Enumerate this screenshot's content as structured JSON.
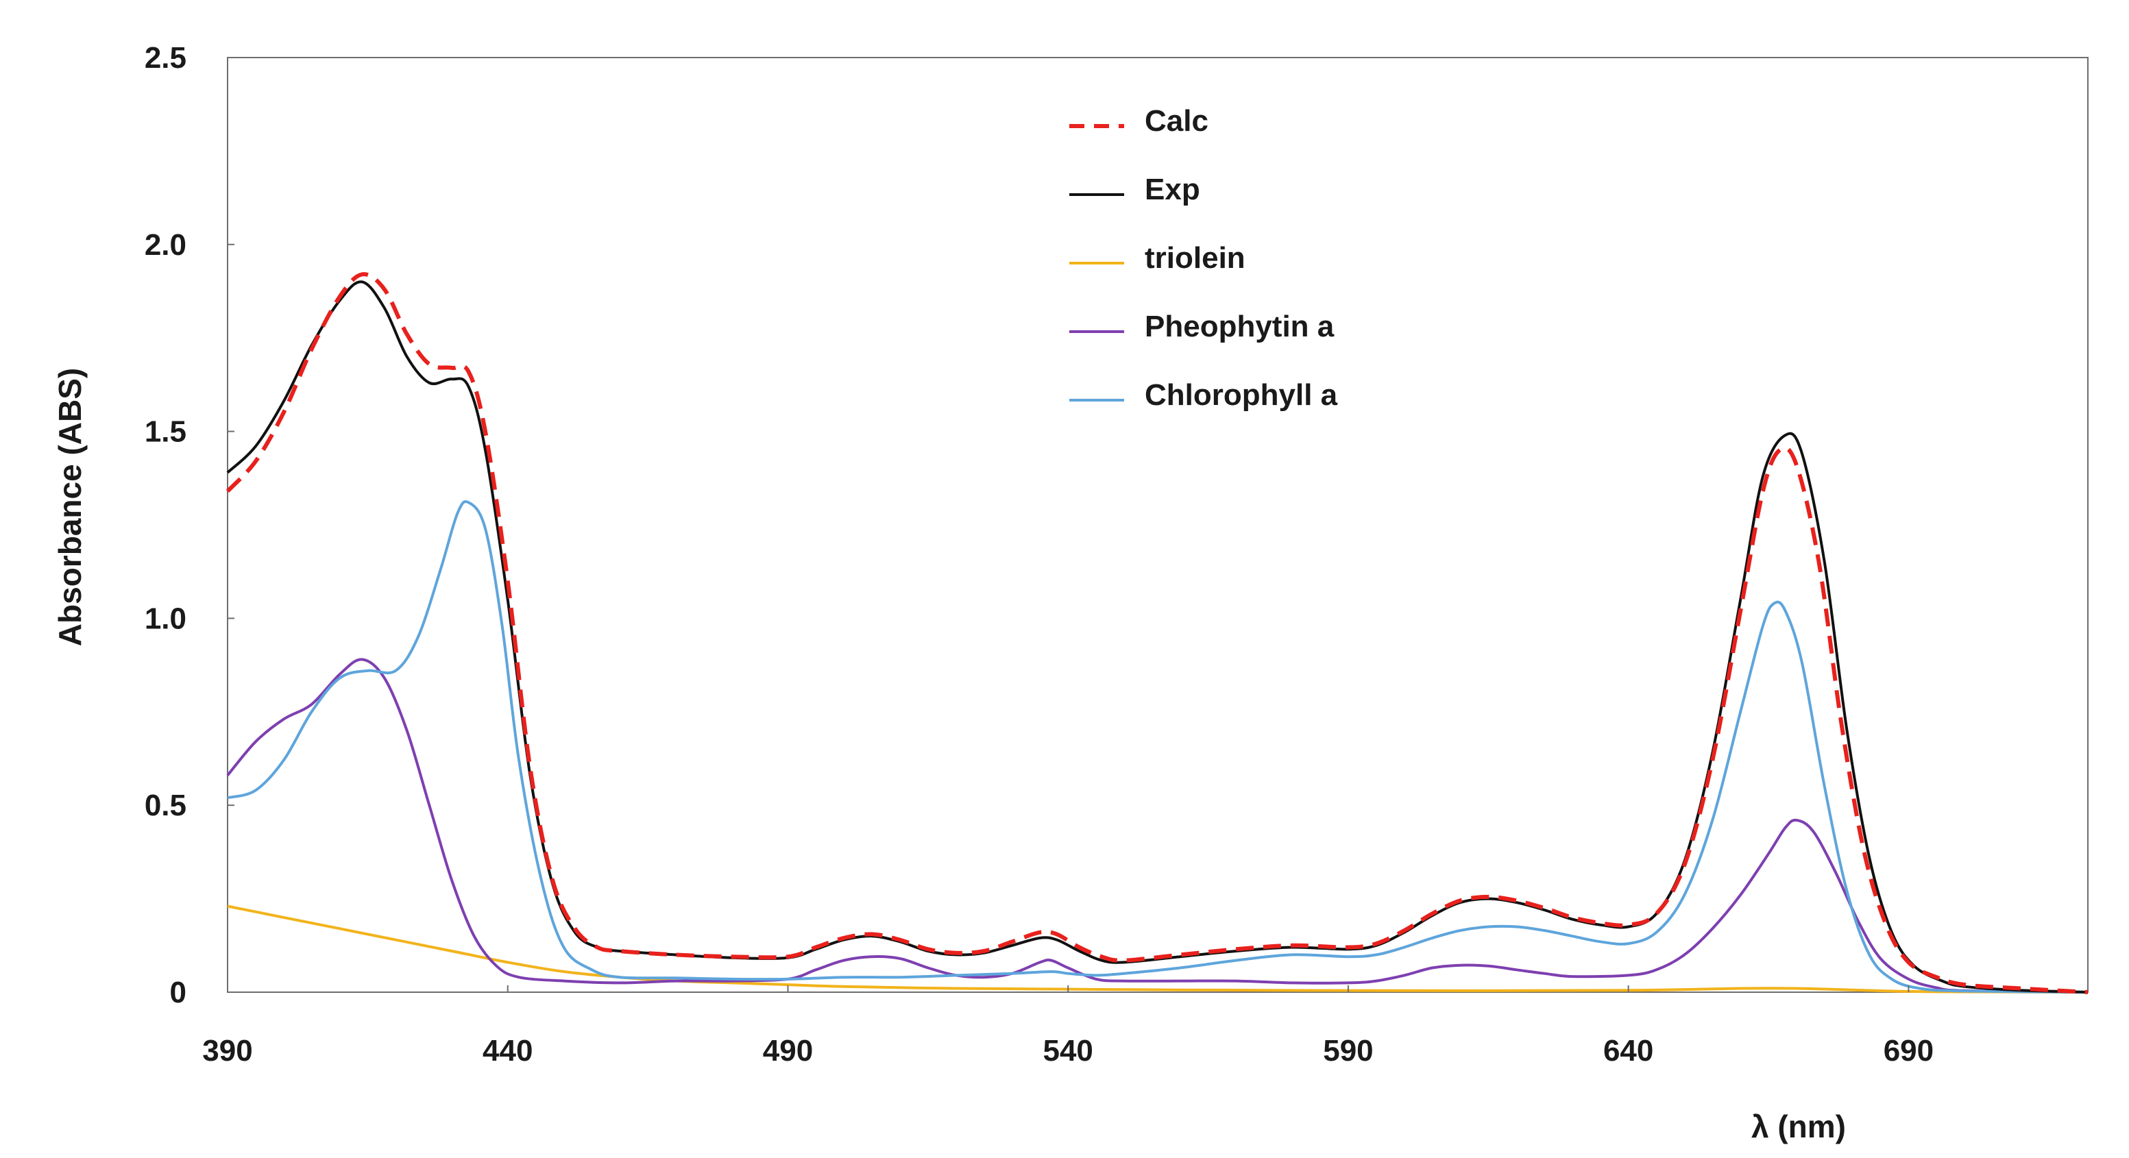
{
  "chart_data": {
    "type": "line",
    "title": "",
    "xlabel": "λ (nm)",
    "ylabel": "Absorbance (ABS)",
    "xlim": [
      390,
      722
    ],
    "ylim": [
      0,
      2.5
    ],
    "x_ticks": [
      390,
      440,
      490,
      540,
      590,
      640,
      690
    ],
    "x_tick_labels": [
      "390",
      "440",
      "490",
      "540",
      "590",
      "640",
      "690"
    ],
    "y_ticks": [
      0,
      0.5,
      1.0,
      1.5,
      2.0,
      2.5
    ],
    "y_tick_labels": [
      "0",
      "0.5",
      "1.0",
      "1.5",
      "2.0",
      "2.5"
    ],
    "grid": false,
    "legend_position": "top-center",
    "series": [
      {
        "name": "Calc",
        "color": "#e8211d",
        "dash": "dashed",
        "points": [
          [
            390,
            1.34
          ],
          [
            395,
            1.42
          ],
          [
            400,
            1.55
          ],
          [
            405,
            1.72
          ],
          [
            410,
            1.86
          ],
          [
            414,
            1.92
          ],
          [
            418,
            1.88
          ],
          [
            422,
            1.76
          ],
          [
            426,
            1.68
          ],
          [
            430,
            1.67
          ],
          [
            433,
            1.66
          ],
          [
            436,
            1.5
          ],
          [
            440,
            1.1
          ],
          [
            444,
            0.6
          ],
          [
            448,
            0.3
          ],
          [
            452,
            0.17
          ],
          [
            456,
            0.12
          ],
          [
            460,
            0.11
          ],
          [
            470,
            0.1
          ],
          [
            480,
            0.095
          ],
          [
            490,
            0.095
          ],
          [
            495,
            0.12
          ],
          [
            500,
            0.145
          ],
          [
            505,
            0.155
          ],
          [
            510,
            0.14
          ],
          [
            515,
            0.115
          ],
          [
            520,
            0.105
          ],
          [
            525,
            0.11
          ],
          [
            530,
            0.135
          ],
          [
            535,
            0.16
          ],
          [
            538,
            0.155
          ],
          [
            542,
            0.12
          ],
          [
            546,
            0.095
          ],
          [
            550,
            0.085
          ],
          [
            560,
            0.1
          ],
          [
            570,
            0.115
          ],
          [
            580,
            0.125
          ],
          [
            590,
            0.12
          ],
          [
            595,
            0.13
          ],
          [
            600,
            0.165
          ],
          [
            605,
            0.21
          ],
          [
            610,
            0.245
          ],
          [
            615,
            0.255
          ],
          [
            620,
            0.245
          ],
          [
            625,
            0.225
          ],
          [
            630,
            0.2
          ],
          [
            635,
            0.185
          ],
          [
            640,
            0.18
          ],
          [
            645,
            0.21
          ],
          [
            650,
            0.34
          ],
          [
            655,
            0.62
          ],
          [
            660,
            1.02
          ],
          [
            664,
            1.34
          ],
          [
            667,
            1.45
          ],
          [
            670,
            1.41
          ],
          [
            674,
            1.15
          ],
          [
            678,
            0.72
          ],
          [
            682,
            0.38
          ],
          [
            686,
            0.18
          ],
          [
            690,
            0.08
          ],
          [
            695,
            0.04
          ],
          [
            700,
            0.02
          ],
          [
            710,
            0.01
          ],
          [
            722,
            0
          ]
        ]
      },
      {
        "name": "Exp",
        "color": "#111111",
        "dash": "solid",
        "points": [
          [
            390,
            1.39
          ],
          [
            395,
            1.46
          ],
          [
            400,
            1.58
          ],
          [
            405,
            1.73
          ],
          [
            410,
            1.85
          ],
          [
            414,
            1.9
          ],
          [
            418,
            1.83
          ],
          [
            422,
            1.7
          ],
          [
            426,
            1.63
          ],
          [
            430,
            1.64
          ],
          [
            433,
            1.62
          ],
          [
            436,
            1.45
          ],
          [
            440,
            1.05
          ],
          [
            444,
            0.58
          ],
          [
            448,
            0.29
          ],
          [
            452,
            0.16
          ],
          [
            456,
            0.12
          ],
          [
            460,
            0.11
          ],
          [
            470,
            0.1
          ],
          [
            480,
            0.092
          ],
          [
            490,
            0.092
          ],
          [
            495,
            0.115
          ],
          [
            500,
            0.14
          ],
          [
            505,
            0.15
          ],
          [
            510,
            0.135
          ],
          [
            515,
            0.11
          ],
          [
            520,
            0.1
          ],
          [
            525,
            0.105
          ],
          [
            530,
            0.125
          ],
          [
            535,
            0.145
          ],
          [
            538,
            0.14
          ],
          [
            542,
            0.11
          ],
          [
            546,
            0.085
          ],
          [
            550,
            0.08
          ],
          [
            560,
            0.095
          ],
          [
            570,
            0.11
          ],
          [
            580,
            0.12
          ],
          [
            590,
            0.115
          ],
          [
            595,
            0.125
          ],
          [
            600,
            0.16
          ],
          [
            605,
            0.205
          ],
          [
            610,
            0.24
          ],
          [
            615,
            0.25
          ],
          [
            620,
            0.24
          ],
          [
            625,
            0.22
          ],
          [
            630,
            0.195
          ],
          [
            635,
            0.18
          ],
          [
            640,
            0.175
          ],
          [
            645,
            0.21
          ],
          [
            650,
            0.35
          ],
          [
            655,
            0.64
          ],
          [
            660,
            1.05
          ],
          [
            664,
            1.38
          ],
          [
            668,
            1.49
          ],
          [
            671,
            1.44
          ],
          [
            675,
            1.15
          ],
          [
            679,
            0.7
          ],
          [
            683,
            0.36
          ],
          [
            687,
            0.16
          ],
          [
            691,
            0.07
          ],
          [
            696,
            0.03
          ],
          [
            700,
            0.015
          ],
          [
            710,
            0.005
          ],
          [
            722,
            0
          ]
        ]
      },
      {
        "name": "triolein",
        "color": "#f2b31b",
        "dash": "solid",
        "points": [
          [
            390,
            0.23
          ],
          [
            400,
            0.2
          ],
          [
            410,
            0.17
          ],
          [
            420,
            0.14
          ],
          [
            430,
            0.11
          ],
          [
            440,
            0.08
          ],
          [
            450,
            0.055
          ],
          [
            460,
            0.04
          ],
          [
            470,
            0.03
          ],
          [
            480,
            0.025
          ],
          [
            490,
            0.02
          ],
          [
            500,
            0.015
          ],
          [
            520,
            0.01
          ],
          [
            540,
            0.008
          ],
          [
            560,
            0.006
          ],
          [
            600,
            0.004
          ],
          [
            640,
            0.005
          ],
          [
            660,
            0.01
          ],
          [
            670,
            0.01
          ],
          [
            680,
            0.006
          ],
          [
            690,
            0.002
          ],
          [
            700,
            0.001
          ],
          [
            722,
            0
          ]
        ]
      },
      {
        "name": "Pheophytin a",
        "color": "#7e3fb0",
        "dash": "solid",
        "points": [
          [
            390,
            0.58
          ],
          [
            395,
            0.67
          ],
          [
            400,
            0.73
          ],
          [
            405,
            0.77
          ],
          [
            410,
            0.85
          ],
          [
            414,
            0.89
          ],
          [
            418,
            0.84
          ],
          [
            422,
            0.7
          ],
          [
            426,
            0.5
          ],
          [
            430,
            0.3
          ],
          [
            434,
            0.15
          ],
          [
            438,
            0.07
          ],
          [
            442,
            0.04
          ],
          [
            450,
            0.03
          ],
          [
            460,
            0.025
          ],
          [
            470,
            0.03
          ],
          [
            480,
            0.03
          ],
          [
            490,
            0.035
          ],
          [
            495,
            0.06
          ],
          [
            500,
            0.085
          ],
          [
            505,
            0.095
          ],
          [
            510,
            0.09
          ],
          [
            515,
            0.065
          ],
          [
            520,
            0.045
          ],
          [
            525,
            0.04
          ],
          [
            530,
            0.05
          ],
          [
            535,
            0.08
          ],
          [
            537,
            0.085
          ],
          [
            540,
            0.065
          ],
          [
            545,
            0.035
          ],
          [
            550,
            0.03
          ],
          [
            560,
            0.03
          ],
          [
            570,
            0.03
          ],
          [
            580,
            0.025
          ],
          [
            590,
            0.025
          ],
          [
            595,
            0.03
          ],
          [
            600,
            0.045
          ],
          [
            605,
            0.065
          ],
          [
            610,
            0.072
          ],
          [
            615,
            0.07
          ],
          [
            620,
            0.06
          ],
          [
            625,
            0.05
          ],
          [
            630,
            0.042
          ],
          [
            640,
            0.045
          ],
          [
            645,
            0.06
          ],
          [
            650,
            0.1
          ],
          [
            655,
            0.17
          ],
          [
            660,
            0.26
          ],
          [
            665,
            0.37
          ],
          [
            668,
            0.44
          ],
          [
            670,
            0.46
          ],
          [
            673,
            0.43
          ],
          [
            677,
            0.32
          ],
          [
            681,
            0.19
          ],
          [
            685,
            0.09
          ],
          [
            690,
            0.035
          ],
          [
            695,
            0.012
          ],
          [
            700,
            0.004
          ],
          [
            722,
            0
          ]
        ]
      },
      {
        "name": "Chlorophyll a",
        "color": "#5ea5dc",
        "dash": "solid",
        "points": [
          [
            390,
            0.52
          ],
          [
            395,
            0.54
          ],
          [
            400,
            0.62
          ],
          [
            405,
            0.75
          ],
          [
            410,
            0.84
          ],
          [
            415,
            0.86
          ],
          [
            420,
            0.86
          ],
          [
            424,
            0.95
          ],
          [
            428,
            1.13
          ],
          [
            431,
            1.28
          ],
          [
            433,
            1.31
          ],
          [
            436,
            1.24
          ],
          [
            439,
            0.98
          ],
          [
            442,
            0.62
          ],
          [
            446,
            0.3
          ],
          [
            450,
            0.12
          ],
          [
            455,
            0.06
          ],
          [
            460,
            0.04
          ],
          [
            470,
            0.038
          ],
          [
            480,
            0.035
          ],
          [
            490,
            0.035
          ],
          [
            500,
            0.04
          ],
          [
            510,
            0.04
          ],
          [
            520,
            0.045
          ],
          [
            530,
            0.05
          ],
          [
            537,
            0.055
          ],
          [
            540,
            0.05
          ],
          [
            545,
            0.045
          ],
          [
            550,
            0.05
          ],
          [
            560,
            0.065
          ],
          [
            570,
            0.085
          ],
          [
            580,
            0.1
          ],
          [
            590,
            0.095
          ],
          [
            595,
            0.1
          ],
          [
            600,
            0.12
          ],
          [
            605,
            0.145
          ],
          [
            610,
            0.165
          ],
          [
            615,
            0.175
          ],
          [
            620,
            0.175
          ],
          [
            625,
            0.165
          ],
          [
            630,
            0.15
          ],
          [
            635,
            0.135
          ],
          [
            640,
            0.13
          ],
          [
            645,
            0.16
          ],
          [
            650,
            0.26
          ],
          [
            655,
            0.46
          ],
          [
            660,
            0.75
          ],
          [
            664,
            0.98
          ],
          [
            666,
            1.04
          ],
          [
            668,
            1.02
          ],
          [
            671,
            0.88
          ],
          [
            675,
            0.55
          ],
          [
            679,
            0.27
          ],
          [
            683,
            0.1
          ],
          [
            687,
            0.035
          ],
          [
            692,
            0.01
          ],
          [
            700,
            0.003
          ],
          [
            722,
            0
          ]
        ]
      }
    ]
  }
}
